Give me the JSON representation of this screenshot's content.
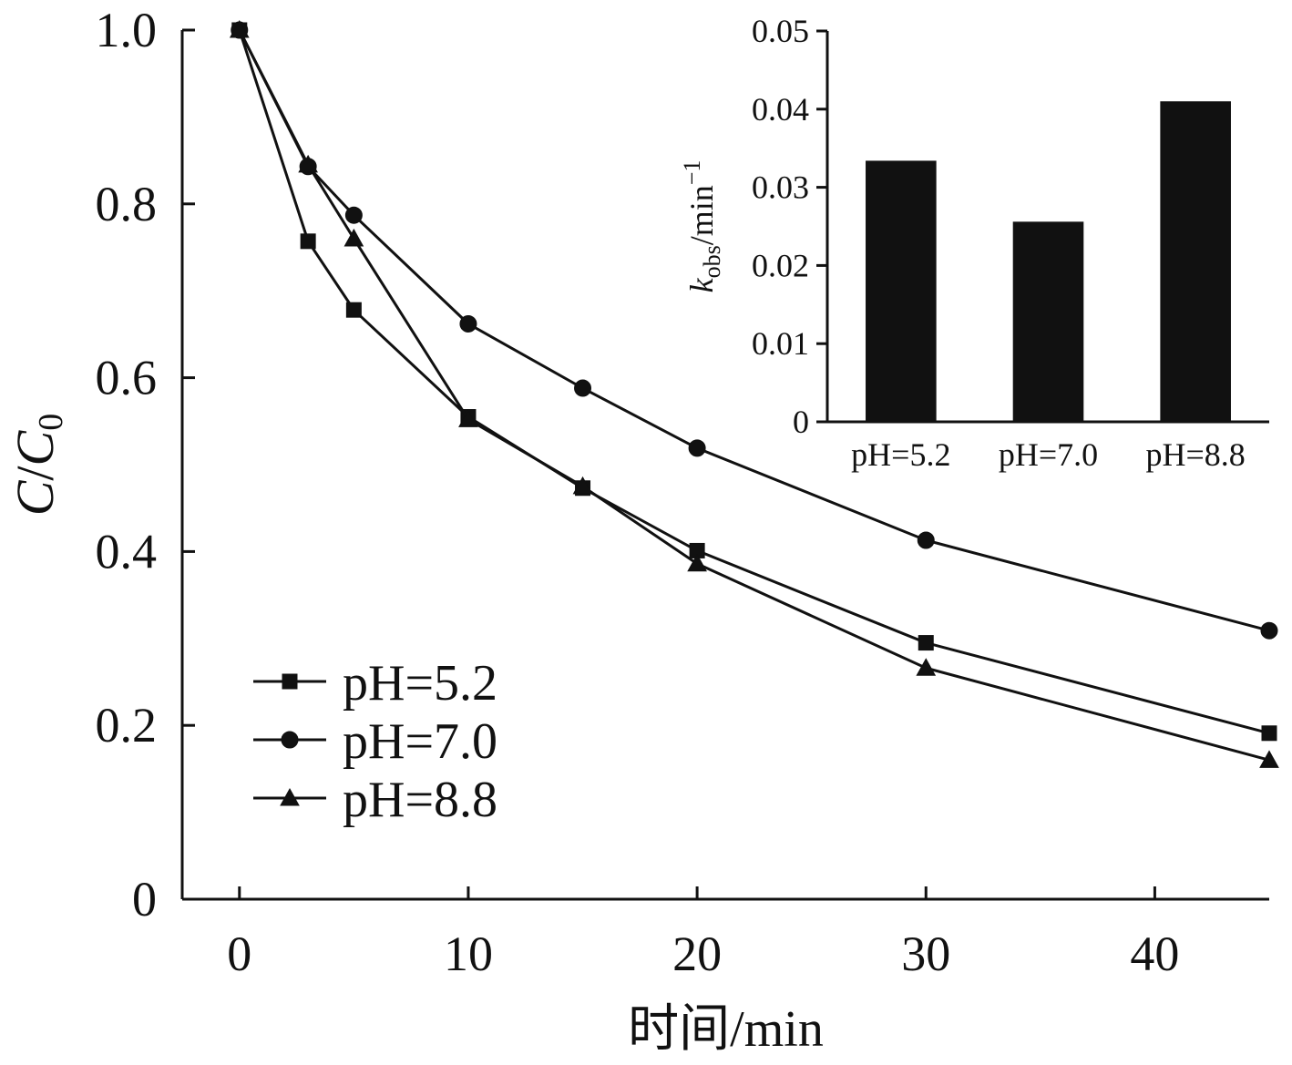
{
  "chart_data": [
    {
      "type": "line",
      "x_tick_labels": [
        "0",
        "10",
        "20",
        "30",
        "40"
      ],
      "y_tick_labels": [
        "0",
        "0.2",
        "0.4",
        "0.6",
        "0.8",
        "1.0"
      ],
      "xlabel": "时间/min",
      "ylabel_parts": {
        "c": "C",
        "slash": "/",
        "c0": "C",
        "sub": "0"
      },
      "xlim": [
        -2.5,
        45
      ],
      "ylim": [
        0,
        1.0
      ],
      "x_ticks": [
        0,
        10,
        20,
        30,
        40
      ],
      "y_ticks": [
        0,
        0.2,
        0.4,
        0.6,
        0.8,
        1.0
      ],
      "legend_position": "bottom-left",
      "series": [
        {
          "name": "pH=5.2",
          "marker": "square",
          "x": [
            0,
            3,
            5,
            10,
            15,
            20,
            30,
            45
          ],
          "y": [
            1.0,
            0.757,
            0.678,
            0.555,
            0.473,
            0.401,
            0.295,
            0.191
          ]
        },
        {
          "name": "pH=7.0",
          "marker": "circle",
          "x": [
            0,
            3,
            5,
            10,
            15,
            20,
            30,
            45
          ],
          "y": [
            1.0,
            0.843,
            0.787,
            0.662,
            0.588,
            0.519,
            0.413,
            0.309
          ]
        },
        {
          "name": "pH=8.8",
          "marker": "triangle",
          "x": [
            0,
            3,
            5,
            10,
            15,
            20,
            30,
            45
          ],
          "y": [
            1.0,
            0.845,
            0.76,
            0.552,
            0.475,
            0.386,
            0.266,
            0.16
          ]
        }
      ]
    },
    {
      "type": "bar",
      "categories": [
        "pH=5.2",
        "pH=7.0",
        "pH=8.8"
      ],
      "values": [
        0.0334,
        0.0256,
        0.041
      ],
      "y_tick_labels": [
        "0",
        "0.01",
        "0.02",
        "0.03",
        "0.04",
        "0.05"
      ],
      "ylim": [
        0,
        0.05
      ],
      "y_ticks": [
        0,
        0.01,
        0.02,
        0.03,
        0.04,
        0.05
      ],
      "ylabel_parts": {
        "k": "k",
        "sub": "obs",
        "unit": "/min",
        "sup": "−1"
      },
      "bar_color": "#111111"
    }
  ]
}
